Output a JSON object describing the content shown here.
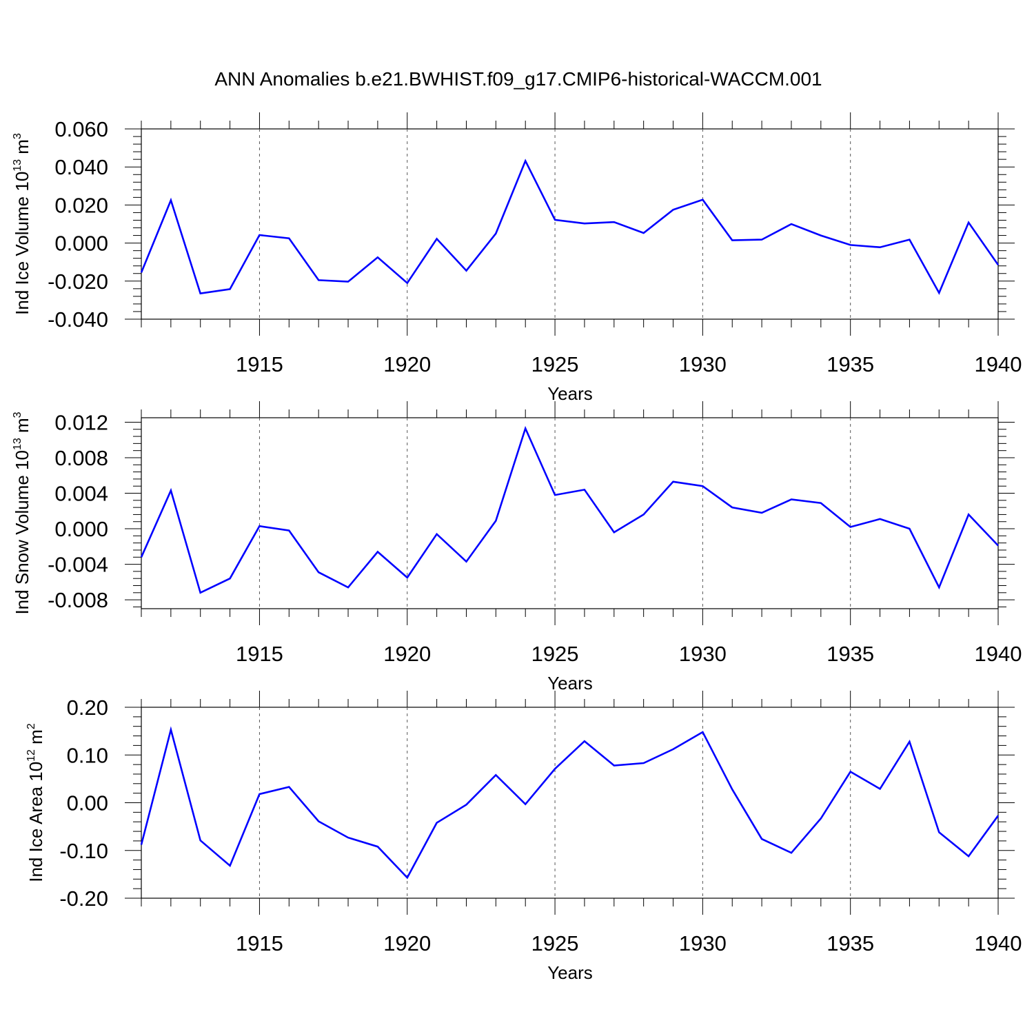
{
  "title": "ANN Anomalies b.e21.BWHIST.f09_g17.CMIP6-historical-WACCM.001",
  "chart_data": [
    {
      "type": "line",
      "ylabel": {
        "base": "Ind Ice Volume 10",
        "exp": "13",
        "unit": " m",
        "unit_exp": "3"
      },
      "xlabel": "Years",
      "xlim": [
        1911,
        1940
      ],
      "ylim": [
        -0.04,
        0.06
      ],
      "yticks": [
        -0.04,
        -0.02,
        0.0,
        0.02,
        0.04,
        0.06
      ],
      "ytick_labels": [
        "-0.040",
        "-0.020",
        "0.000",
        "0.020",
        "0.040",
        "0.060"
      ],
      "xticks": [
        1915,
        1920,
        1925,
        1930,
        1935,
        1940
      ],
      "xtick_labels": [
        "1915",
        "1920",
        "1925",
        "1930",
        "1935",
        "1940"
      ],
      "color": "#0000ff",
      "x": [
        1911,
        1912,
        1913,
        1914,
        1915,
        1916,
        1917,
        1918,
        1919,
        1920,
        1921,
        1922,
        1923,
        1924,
        1925,
        1926,
        1927,
        1928,
        1929,
        1930,
        1931,
        1932,
        1933,
        1934,
        1935,
        1936,
        1937,
        1938,
        1939,
        1940
      ],
      "values": [
        -0.0155,
        0.0225,
        -0.0265,
        -0.0242,
        0.0042,
        0.0025,
        -0.0195,
        -0.0203,
        -0.0075,
        -0.021,
        0.0022,
        -0.0145,
        0.005,
        0.0432,
        0.0122,
        0.0103,
        0.011,
        0.0053,
        0.0175,
        0.0228,
        0.0015,
        0.0018,
        0.01,
        0.004,
        -0.001,
        -0.0022,
        0.0018,
        -0.0262,
        0.0108,
        -0.0115
      ]
    },
    {
      "type": "line",
      "ylabel": {
        "base": "Ind Snow Volume 10",
        "exp": "13",
        "unit": " m",
        "unit_exp": "3"
      },
      "xlabel": "Years",
      "xlim": [
        1911,
        1940
      ],
      "ylim": [
        -0.009,
        0.0125
      ],
      "yticks": [
        -0.008,
        -0.004,
        0.0,
        0.004,
        0.008,
        0.012
      ],
      "ytick_labels": [
        "-0.008",
        "-0.004",
        "0.000",
        "0.004",
        "0.008",
        "0.012"
      ],
      "xticks": [
        1915,
        1920,
        1925,
        1930,
        1935,
        1940
      ],
      "xtick_labels": [
        "1915",
        "1920",
        "1925",
        "1930",
        "1935",
        "1940"
      ],
      "color": "#0000ff",
      "x": [
        1911,
        1912,
        1913,
        1914,
        1915,
        1916,
        1917,
        1918,
        1919,
        1920,
        1921,
        1922,
        1923,
        1924,
        1925,
        1926,
        1927,
        1928,
        1929,
        1930,
        1931,
        1932,
        1933,
        1934,
        1935,
        1936,
        1937,
        1938,
        1939,
        1940
      ],
      "values": [
        -0.0032,
        0.0043,
        -0.0072,
        -0.0056,
        0.0003,
        -0.0002,
        -0.0049,
        -0.0066,
        -0.0026,
        -0.0055,
        -0.0006,
        -0.0037,
        0.0009,
        0.0113,
        0.0038,
        0.0044,
        -0.0004,
        0.0016,
        0.0053,
        0.0048,
        0.0024,
        0.0018,
        0.0033,
        0.0029,
        0.0002,
        0.0011,
        0.0,
        -0.0066,
        0.0016,
        -0.0019
      ]
    },
    {
      "type": "line",
      "ylabel": {
        "base": "Ind Ice Area 10",
        "exp": "12",
        "unit": " m",
        "unit_exp": "2"
      },
      "xlabel": "Years",
      "xlim": [
        1911,
        1940
      ],
      "ylim": [
        -0.2,
        0.2
      ],
      "yticks": [
        -0.2,
        -0.1,
        0.0,
        0.1,
        0.2
      ],
      "ytick_labels": [
        "-0.20",
        "-0.10",
        "0.00",
        "0.10",
        "0.20"
      ],
      "xticks": [
        1915,
        1920,
        1925,
        1930,
        1935,
        1940
      ],
      "xtick_labels": [
        "1915",
        "1920",
        "1925",
        "1930",
        "1935",
        "1940"
      ],
      "color": "#0000ff",
      "x": [
        1911,
        1912,
        1913,
        1914,
        1915,
        1916,
        1917,
        1918,
        1919,
        1920,
        1921,
        1922,
        1923,
        1924,
        1925,
        1926,
        1927,
        1928,
        1929,
        1930,
        1931,
        1932,
        1933,
        1934,
        1935,
        1936,
        1937,
        1938,
        1939,
        1940
      ],
      "values": [
        -0.088,
        0.153,
        -0.079,
        -0.132,
        0.018,
        0.033,
        -0.039,
        -0.073,
        -0.092,
        -0.157,
        -0.042,
        -0.004,
        0.058,
        -0.003,
        0.071,
        0.129,
        0.078,
        0.083,
        0.112,
        0.148,
        0.028,
        -0.076,
        -0.105,
        -0.033,
        0.065,
        0.029,
        0.128,
        -0.062,
        -0.112,
        -0.027
      ]
    }
  ]
}
